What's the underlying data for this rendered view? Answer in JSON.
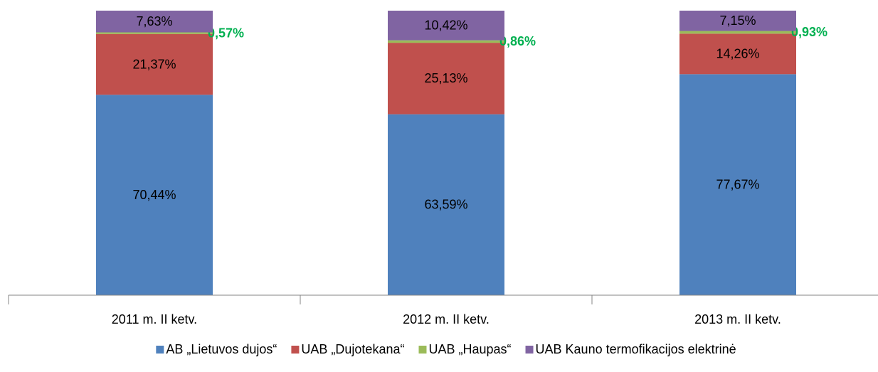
{
  "chart_data": {
    "type": "stacked_bar",
    "categories": [
      "2011 m. II ketv.",
      "2012 m. II ketv.",
      "2013 m. II ketv."
    ],
    "series": [
      {
        "name": "AB „Lietuvos dujos“",
        "color": "#4f81bd",
        "values": [
          70.44,
          63.59,
          77.67
        ],
        "value_labels": [
          "70,44%",
          "63,59%",
          "77,67%"
        ]
      },
      {
        "name": "UAB „Dujotekana“",
        "color": "#c0504d",
        "values": [
          21.37,
          25.13,
          14.26
        ],
        "value_labels": [
          "21,37%",
          "25,13%",
          "14,26%"
        ]
      },
      {
        "name": "UAB „Haupas“",
        "color": "#9bbb59",
        "label_color": "#00b050",
        "values": [
          0.57,
          0.86,
          0.93
        ],
        "value_labels": [
          "0,57%",
          "0,86%",
          "0,93%"
        ]
      },
      {
        "name": "UAB Kauno termofikacijos elektrinė",
        "color": "#8064a2",
        "values": [
          7.63,
          10.42,
          7.15
        ],
        "value_labels": [
          "7,63%",
          "10,42%",
          "7,15%"
        ]
      }
    ],
    "ylim": [
      0,
      100
    ],
    "legend": "bottom"
  }
}
